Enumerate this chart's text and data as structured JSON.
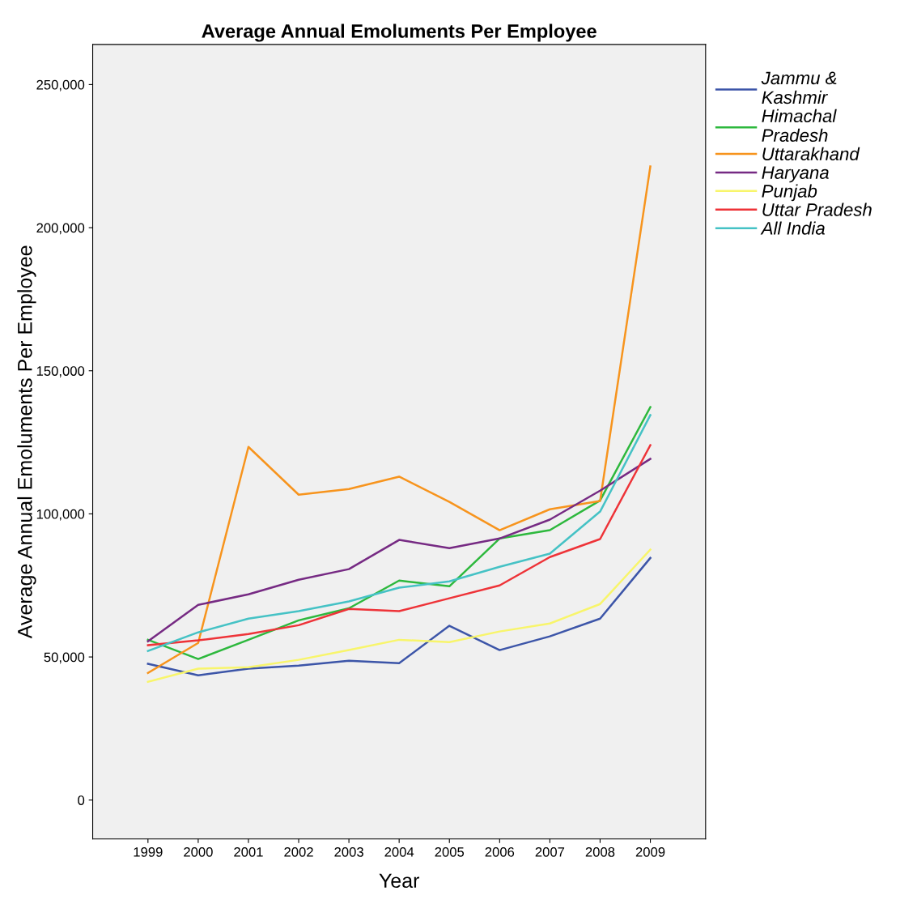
{
  "chart_data": {
    "type": "line",
    "title": "Average Annual Emoluments Per Employee",
    "xlabel": "Year",
    "ylabel": "Average Annual Emoluments Per Employee",
    "x": [
      1999,
      2000,
      2001,
      2002,
      2003,
      2004,
      2005,
      2006,
      2007,
      2008,
      2009
    ],
    "xlim": [
      1997.9,
      2010.1
    ],
    "xticks": [
      1999,
      2000,
      2001,
      2002,
      2003,
      2004,
      2005,
      2006,
      2007,
      2008,
      2009
    ],
    "ylim": [
      -13600,
      264000
    ],
    "yticks": [
      {
        "value": 0,
        "label": "0"
      },
      {
        "value": 50000,
        "label": "50,000"
      },
      {
        "value": 100000,
        "label": "100,000"
      },
      {
        "value": 150000,
        "label": "150,000"
      },
      {
        "value": 200000,
        "label": "200,000"
      },
      {
        "value": 250000,
        "label": "250,000"
      }
    ],
    "grid": false,
    "legend": "right",
    "marker": "none",
    "line_style": "solid",
    "series": [
      {
        "name": "Jammu & Kashmir",
        "color": "#3c55a8",
        "values": [
          47600,
          43600,
          45900,
          47000,
          48700,
          47800,
          60900,
          52400,
          57200,
          63400,
          84600
        ]
      },
      {
        "name": "Himachal Pradesh",
        "color": "#2db83d",
        "values": [
          56000,
          49300,
          56000,
          62800,
          67000,
          76700,
          74700,
          91400,
          94300,
          104700,
          137300
        ]
      },
      {
        "name": "Uttarakhand",
        "color": "#f7941d",
        "values": [
          44400,
          54900,
          123400,
          106700,
          108700,
          113000,
          104200,
          94300,
          101600,
          104500,
          221400
        ]
      },
      {
        "name": "Haryana",
        "color": "#762a83",
        "values": [
          55500,
          68200,
          71900,
          77000,
          80700,
          90900,
          88000,
          91400,
          98000,
          108100,
          119200
        ]
      },
      {
        "name": "Punjab",
        "color": "#f8f56b",
        "values": [
          41300,
          45900,
          46400,
          49000,
          52400,
          56000,
          55200,
          58900,
          61700,
          68500,
          87500
        ]
      },
      {
        "name": "Uttar Pradesh",
        "color": "#ee3338",
        "values": [
          54100,
          55800,
          58000,
          61100,
          66800,
          66000,
          70500,
          75000,
          84900,
          91200,
          124000
        ]
      },
      {
        "name": "All India",
        "color": "#45c2c5",
        "values": [
          52100,
          58600,
          63400,
          66000,
          69400,
          74200,
          76400,
          81500,
          86100,
          100800,
          134500
        ]
      }
    ]
  }
}
